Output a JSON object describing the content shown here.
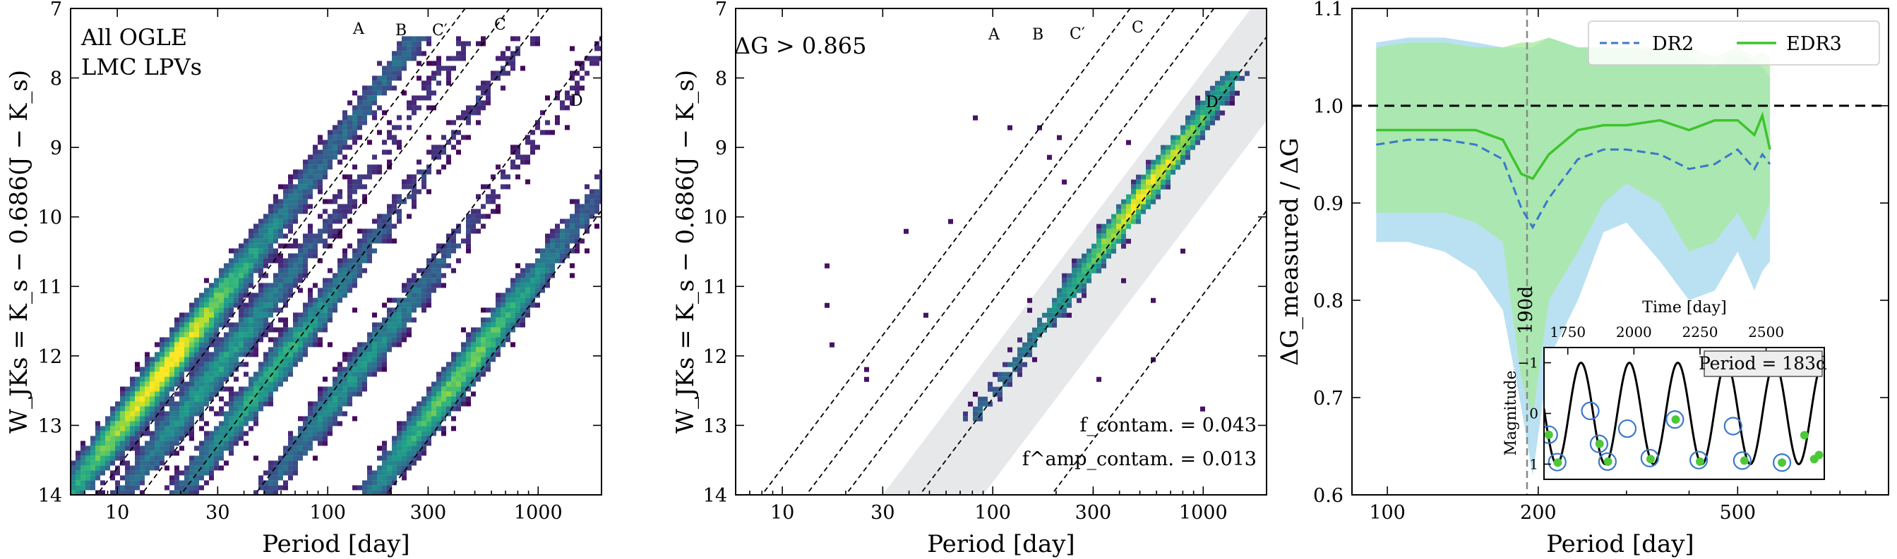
{
  "chart_data": [
    {
      "type": "heatmap",
      "panel": "left",
      "annotation": [
        "All OGLE",
        "LMC LPVs"
      ],
      "xlabel": "Period [day]",
      "ylabel": "W_JKs = K_s − 0.686(J − K_s)",
      "xscale": "log",
      "xlim": [
        6,
        2000
      ],
      "ylim": [
        14,
        7
      ],
      "xticks": [
        10,
        30,
        100,
        300,
        1000
      ],
      "yticks": [
        7,
        8,
        9,
        10,
        11,
        12,
        13,
        14
      ],
      "sequence_labels": [
        "A",
        "B",
        "C′",
        "C",
        "D"
      ],
      "ridges": [
        {
          "name": "A",
          "period_at_W12": 18,
          "density": 1.0
        },
        {
          "name": "B",
          "period_at_W12": 32,
          "density": 0.55
        },
        {
          "name": "C′",
          "period_at_W12": 60,
          "density": 0.6
        },
        {
          "name": "C",
          "period_at_W12": 150,
          "density": 0.5
        },
        {
          "name": "D",
          "period_at_W12": 480,
          "density": 0.75
        }
      ],
      "colormap": "viridis"
    },
    {
      "type": "heatmap",
      "panel": "middle",
      "annotation": "ΔG > 0.865",
      "xlabel": "Period [day]",
      "ylabel": "W_JKs = K_s − 0.686(J − K_s)",
      "xscale": "log",
      "xlim": [
        6,
        2000
      ],
      "ylim": [
        14,
        7
      ],
      "xticks": [
        10,
        30,
        100,
        300,
        1000
      ],
      "yticks": [
        7,
        8,
        9,
        10,
        11,
        12,
        13,
        14
      ],
      "sequence_labels": [
        "A",
        "B",
        "C′",
        "C",
        "D"
      ],
      "f_contam": "f_contam. = 0.043",
      "f_contam_amp": "f^amp_contam. = 0.013",
      "colormap": "viridis"
    },
    {
      "type": "line",
      "panel": "right",
      "xlabel": "Period [day]",
      "ylabel": "ΔG_measured / ΔG",
      "xscale": "log",
      "xlim": [
        85,
        1000
      ],
      "ylim": [
        0.6,
        1.1
      ],
      "xticks": [
        100,
        200,
        500
      ],
      "yticks": [
        0.6,
        0.7,
        0.8,
        0.9,
        1.0,
        1.1
      ],
      "reference_line": 1.0,
      "vline": {
        "x": 190,
        "label": "190d"
      },
      "legend_loc": "top-right",
      "series": [
        {
          "name": "DR2",
          "style": "dashed",
          "color": "#3a78c9",
          "x": [
            95,
            110,
            130,
            150,
            170,
            185,
            195,
            210,
            240,
            270,
            300,
            350,
            400,
            450,
            500,
            540,
            560,
            580
          ],
          "y": [
            0.96,
            0.965,
            0.965,
            0.96,
            0.945,
            0.895,
            0.875,
            0.905,
            0.945,
            0.955,
            0.955,
            0.95,
            0.935,
            0.94,
            0.955,
            0.935,
            0.95,
            0.94
          ],
          "band_low": [
            0.86,
            0.86,
            0.85,
            0.83,
            0.79,
            0.69,
            0.62,
            0.74,
            0.8,
            0.87,
            0.88,
            0.84,
            0.8,
            0.81,
            0.85,
            0.81,
            0.83,
            0.84
          ],
          "band_high": [
            1.065,
            1.07,
            1.07,
            1.065,
            1.06,
            1.06,
            1.06,
            1.07,
            1.06,
            1.06,
            1.06,
            1.055,
            1.05,
            1.04,
            1.055,
            1.045,
            1.04,
            1.03
          ]
        },
        {
          "name": "EDR3",
          "style": "solid",
          "color": "#3ec42c",
          "x": [
            95,
            110,
            130,
            150,
            170,
            185,
            195,
            210,
            240,
            270,
            300,
            350,
            400,
            450,
            500,
            540,
            560,
            580
          ],
          "y": [
            0.975,
            0.975,
            0.975,
            0.975,
            0.965,
            0.93,
            0.925,
            0.95,
            0.975,
            0.98,
            0.98,
            0.985,
            0.975,
            0.985,
            0.985,
            0.97,
            0.99,
            0.955
          ],
          "band_low": [
            0.89,
            0.89,
            0.89,
            0.88,
            0.86,
            0.72,
            0.68,
            0.8,
            0.85,
            0.9,
            0.92,
            0.9,
            0.85,
            0.86,
            0.89,
            0.86,
            0.88,
            0.9
          ],
          "band_high": [
            1.06,
            1.065,
            1.065,
            1.06,
            1.06,
            1.065,
            1.065,
            1.07,
            1.06,
            1.06,
            1.06,
            1.06,
            1.06,
            1.05,
            1.06,
            1.05,
            1.055,
            1.05
          ]
        }
      ]
    },
    {
      "type": "line",
      "panel": "inset",
      "xlabel": "Time [day]",
      "ylabel": "Magnitude",
      "xticks": [
        1750,
        2000,
        2250,
        2500
      ],
      "yticks": [
        -1,
        0,
        1
      ],
      "xlim": [
        1660,
        2720
      ],
      "ylim": [
        1.3,
        -1.3
      ],
      "annotation": "Period = 183d",
      "curve_period": 183,
      "curve_amplitude": 1.0,
      "curve_phase_peak": 1800,
      "dr2_points": [
        {
          "t": 1678,
          "mag": 0.42
        },
        {
          "t": 1710,
          "mag": 0.96
        },
        {
          "t": 1835,
          "mag": -0.05
        },
        {
          "t": 1868,
          "mag": 0.6
        },
        {
          "t": 1900,
          "mag": 0.95
        },
        {
          "t": 2060,
          "mag": 0.88
        },
        {
          "t": 1975,
          "mag": 0.3
        },
        {
          "t": 2155,
          "mag": 0.12
        },
        {
          "t": 2245,
          "mag": 0.92
        },
        {
          "t": 2375,
          "mag": 0.25
        },
        {
          "t": 2410,
          "mag": 0.93
        },
        {
          "t": 2560,
          "mag": 0.97
        }
      ],
      "edr3_points": [
        {
          "t": 1678,
          "mag": 0.42
        },
        {
          "t": 1712,
          "mag": 0.97
        },
        {
          "t": 1870,
          "mag": 0.6
        },
        {
          "t": 1902,
          "mag": 0.95
        },
        {
          "t": 2063,
          "mag": 0.9
        },
        {
          "t": 2158,
          "mag": 0.12
        },
        {
          "t": 2250,
          "mag": 0.95
        },
        {
          "t": 2418,
          "mag": 0.93
        },
        {
          "t": 2560,
          "mag": 0.97
        },
        {
          "t": 2645,
          "mag": 0.43
        },
        {
          "t": 2682,
          "mag": 0.9
        },
        {
          "t": 2700,
          "mag": 0.82
        }
      ]
    }
  ]
}
